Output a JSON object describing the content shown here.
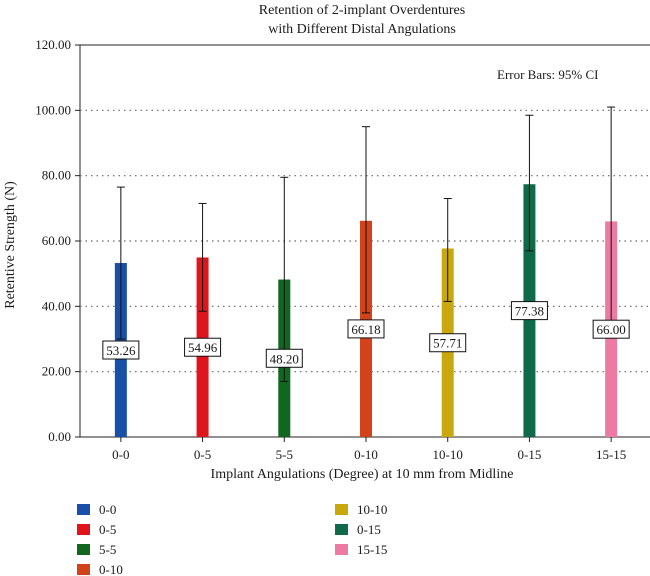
{
  "chart_data": {
    "type": "bar",
    "title_lines": [
      "Retention of 2-implant Overdentures",
      "with Different Distal Angulations"
    ],
    "xlabel": "Implant Angulations (Degree) at 10 mm from Midline",
    "ylabel": "Retentive Strength (N)",
    "ylim": [
      0,
      120
    ],
    "yticks": [
      "0.00",
      "20.00",
      "40.00",
      "60.00",
      "80.00",
      "100.00",
      "120.00"
    ],
    "grid": true,
    "annotation": "Error Bars: 95% CI",
    "categories": [
      "0-0",
      "0-5",
      "5-5",
      "0-10",
      "10-10",
      "0-15",
      "15-15"
    ],
    "values": [
      53.26,
      54.96,
      48.2,
      66.18,
      57.71,
      77.38,
      66.0
    ],
    "value_labels": [
      "53.26",
      "54.96",
      "48.20",
      "66.18",
      "57.71",
      "77.38",
      "66.00"
    ],
    "ci_lower": [
      30,
      38.5,
      17,
      38,
      41.5,
      57,
      31
    ],
    "ci_upper": [
      76.5,
      71.5,
      79.5,
      95,
      73,
      98.5,
      101
    ],
    "colors": [
      "#1a4fa8",
      "#e0151b",
      "#11671f",
      "#d2421b",
      "#c9a80e",
      "#0f6a4a",
      "#ec7aa2"
    ],
    "legend": [
      {
        "label": "0-0",
        "color": "#1a4fa8"
      },
      {
        "label": "0-5",
        "color": "#e0151b"
      },
      {
        "label": "5-5",
        "color": "#11671f"
      },
      {
        "label": "0-10",
        "color": "#d2421b"
      },
      {
        "label": "10-10",
        "color": "#c9a80e"
      },
      {
        "label": "0-15",
        "color": "#0f6a4a"
      },
      {
        "label": "15-15",
        "color": "#ec7aa2"
      }
    ]
  }
}
